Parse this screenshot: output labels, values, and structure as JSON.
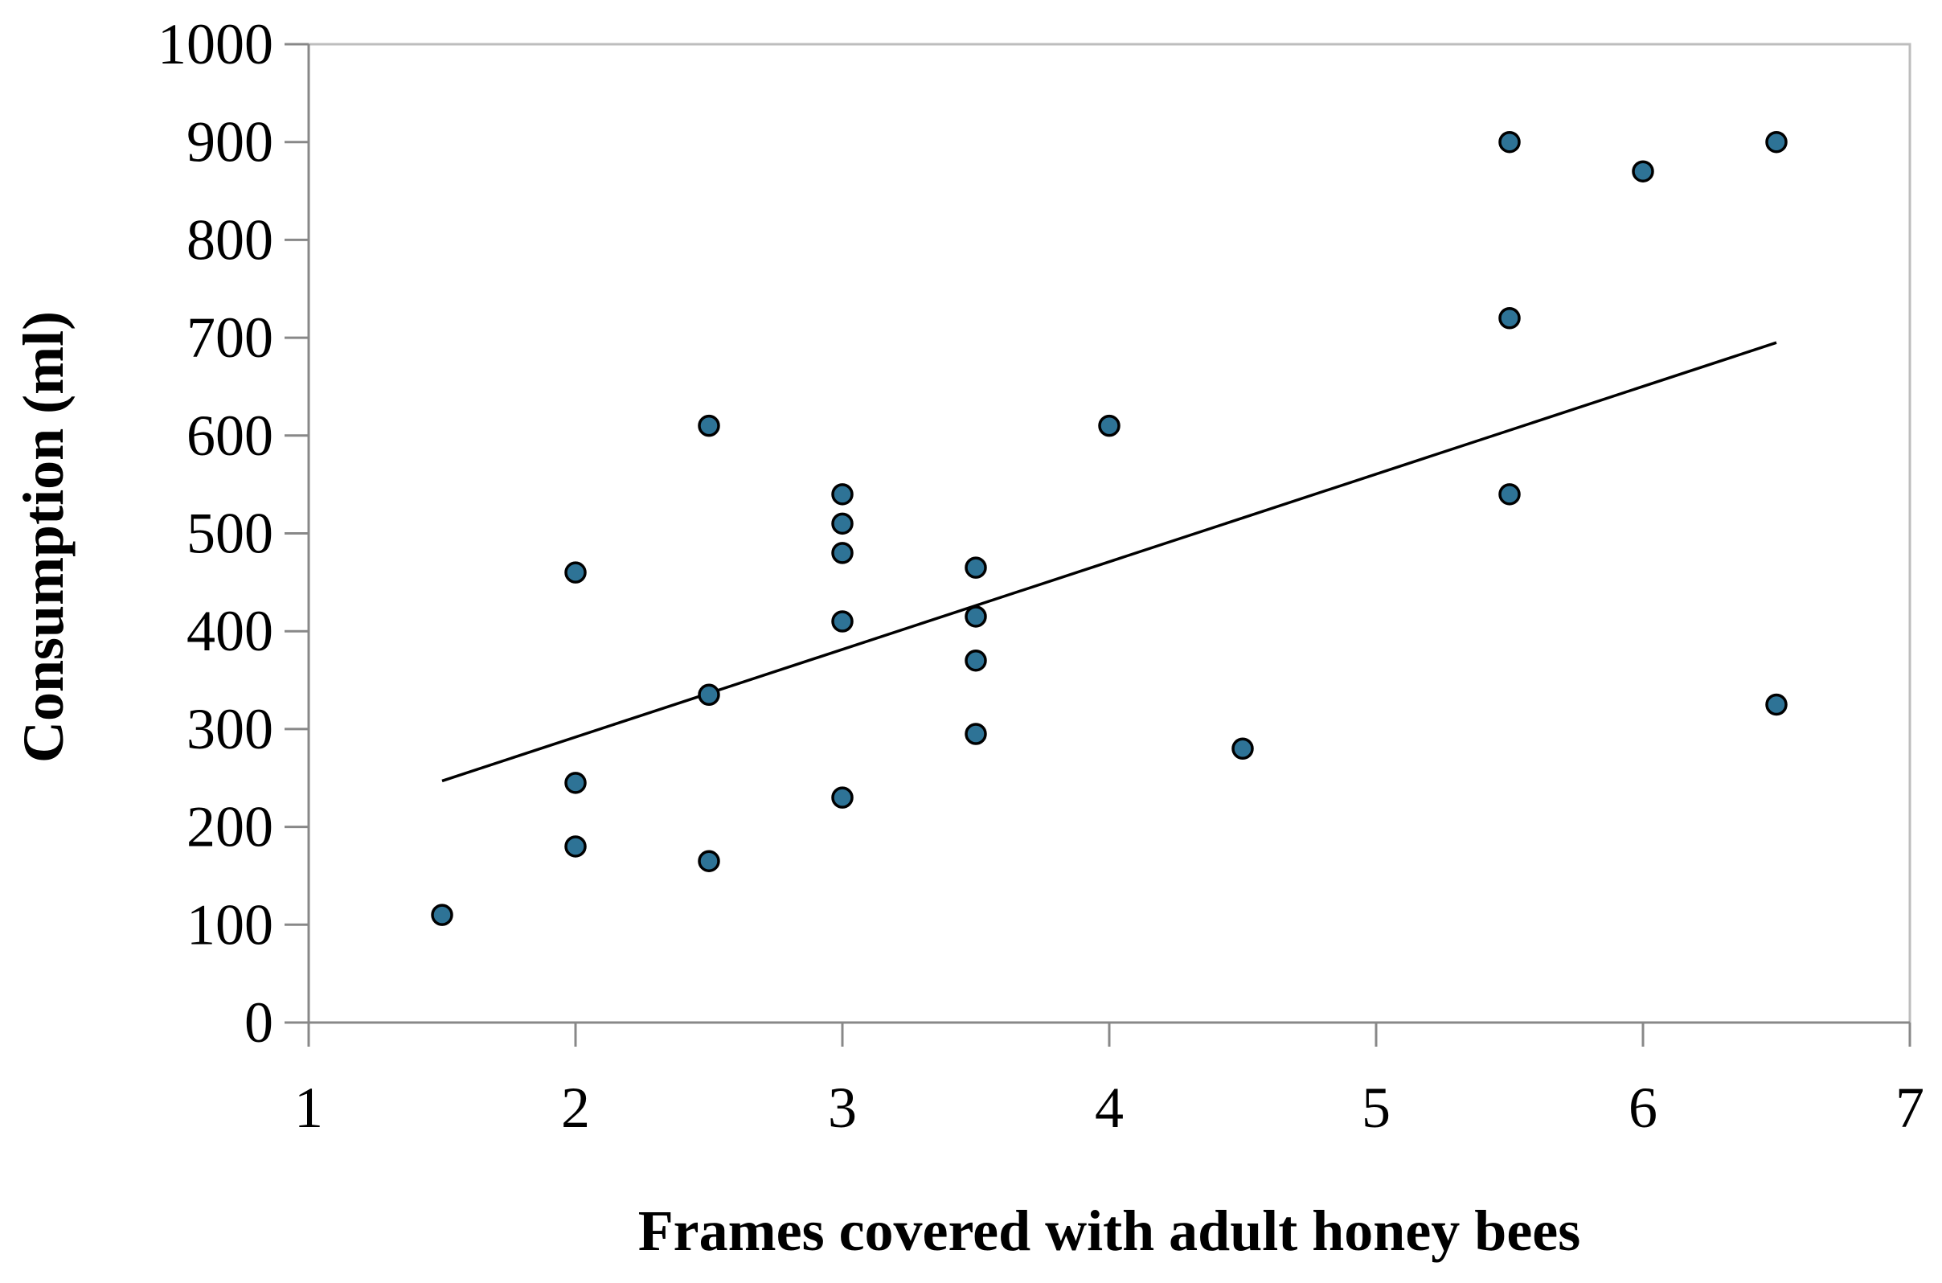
{
  "chart_data": {
    "type": "scatter",
    "title": "",
    "xlabel": "Frames covered with adult honey bees",
    "ylabel": "Consumption (ml)",
    "xlim": [
      1,
      7
    ],
    "ylim": [
      0,
      1000
    ],
    "x_ticks": [
      "1",
      "2",
      "3",
      "4",
      "5",
      "6",
      "7"
    ],
    "y_ticks": [
      "0",
      "100",
      "200",
      "300",
      "400",
      "500",
      "600",
      "700",
      "800",
      "900",
      "1000"
    ],
    "grid": false,
    "legend": "none",
    "marker_color": "#2E7396",
    "marker_edge_color": "#000000",
    "trendline_color": "#000000",
    "axis_color": "#888888",
    "points": [
      {
        "x": 1.5,
        "y": 110
      },
      {
        "x": 2,
        "y": 460
      },
      {
        "x": 2,
        "y": 245
      },
      {
        "x": 2,
        "y": 180
      },
      {
        "x": 2.5,
        "y": 610
      },
      {
        "x": 2.5,
        "y": 335
      },
      {
        "x": 2.5,
        "y": 165
      },
      {
        "x": 3,
        "y": 540
      },
      {
        "x": 3,
        "y": 510
      },
      {
        "x": 3,
        "y": 480
      },
      {
        "x": 3,
        "y": 410
      },
      {
        "x": 3,
        "y": 230
      },
      {
        "x": 3.5,
        "y": 465
      },
      {
        "x": 3.5,
        "y": 415
      },
      {
        "x": 3.5,
        "y": 370
      },
      {
        "x": 3.5,
        "y": 295
      },
      {
        "x": 4,
        "y": 610
      },
      {
        "x": 4.5,
        "y": 280
      },
      {
        "x": 5.5,
        "y": 900
      },
      {
        "x": 5.5,
        "y": 720
      },
      {
        "x": 5.5,
        "y": 540
      },
      {
        "x": 6,
        "y": 870
      },
      {
        "x": 6.5,
        "y": 900
      },
      {
        "x": 6.5,
        "y": 325
      }
    ],
    "trendline": {
      "x": [
        1.5,
        6.5
      ],
      "y": [
        247,
        695
      ]
    }
  }
}
